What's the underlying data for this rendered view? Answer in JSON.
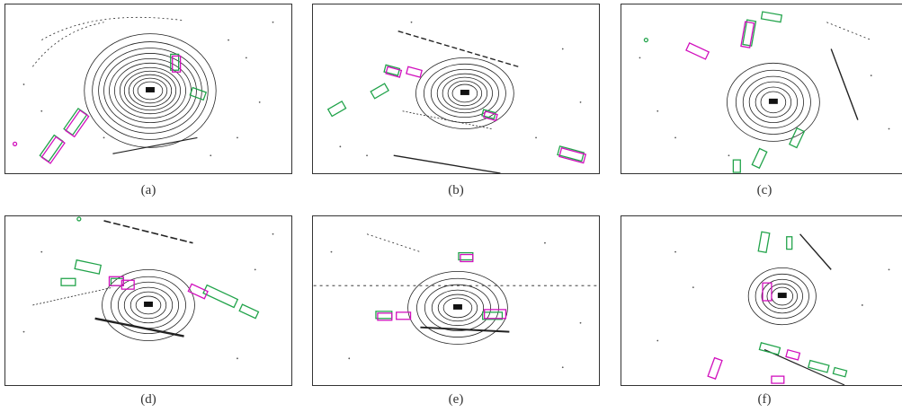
{
  "figure": {
    "captions": [
      "(a)",
      "(b)",
      "(c)",
      "(d)",
      "(e)",
      "(f)"
    ]
  },
  "colors": {
    "ground_truth": "#21a34a",
    "prediction": "#d10fbd",
    "points": "#1a1a1a"
  }
}
